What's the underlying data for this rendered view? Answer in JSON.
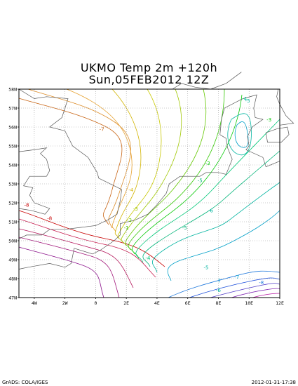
{
  "title": {
    "line1": "UKMO Temp 2m  +120h",
    "line2": "Sun,05FEB2012 12Z"
  },
  "footer": {
    "left": "GrADS: COLA/IGES",
    "right": "2012-01-31-17:38"
  },
  "map": {
    "lat_range": [
      47,
      58
    ],
    "lon_range": [
      -5,
      12
    ],
    "lat_labels": [
      "47N",
      "48N",
      "49N",
      "50N",
      "51N",
      "52N",
      "53N",
      "54N",
      "55N",
      "56N",
      "57N",
      "58N"
    ],
    "lon_ticks": [
      -4,
      -2,
      0,
      2,
      4,
      6,
      8,
      10,
      12
    ],
    "lon_labels": [
      "4W",
      "2W",
      "0",
      "2E",
      "4E",
      "6E",
      "8E",
      "10E",
      "12E"
    ],
    "grid": true
  },
  "contour_labels": [
    {
      "text": "-7",
      "lon": 0.4,
      "lat": 55.8,
      "color": "#c86414"
    },
    {
      "text": "-8",
      "lon": -4.5,
      "lat": 51.8,
      "color": "#c80000"
    },
    {
      "text": "-4",
      "lon": 2.3,
      "lat": 52.6,
      "color": "#d2b400"
    },
    {
      "text": "-3",
      "lon": 2.6,
      "lat": 51.6,
      "color": "#a0c800"
    },
    {
      "text": "-2",
      "lon": 2.2,
      "lat": 51.0,
      "color": "#64c800"
    },
    {
      "text": "-1",
      "lon": 2.0,
      "lat": 50.6,
      "color": "#32c800"
    },
    {
      "text": "-5",
      "lon": 6.8,
      "lat": 53.1,
      "color": "#00b478"
    },
    {
      "text": "-3",
      "lon": 7.3,
      "lat": 54.0,
      "color": "#00c800"
    },
    {
      "text": "-4",
      "lon": 9.7,
      "lat": 57.4,
      "color": "#00c896"
    },
    {
      "text": "-5",
      "lon": 9.9,
      "lat": 57.3,
      "color": "#00b4a0"
    },
    {
      "text": "-3",
      "lon": 11.3,
      "lat": 56.3,
      "color": "#00c800"
    },
    {
      "text": "-6",
      "lon": 7.5,
      "lat": 51.5,
      "color": "#00b4a0"
    },
    {
      "text": "-5",
      "lon": 5.8,
      "lat": 50.6,
      "color": "#00b478"
    },
    {
      "text": "-4",
      "lon": 3.4,
      "lat": 49.0,
      "color": "#00c878"
    },
    {
      "text": "-5",
      "lon": 7.2,
      "lat": 48.5,
      "color": "#00b4a0"
    },
    {
      "text": "-7",
      "lon": 8.0,
      "lat": 47.8,
      "color": "#00a0c8"
    },
    {
      "text": "-7",
      "lon": 9.2,
      "lat": 48.0,
      "color": "#00a0c8"
    },
    {
      "text": "-6",
      "lon": 8.0,
      "lat": 47.3,
      "color": "#00b4a0"
    },
    {
      "text": "-8",
      "lon": 10.8,
      "lat": 47.7,
      "color": "#1e78dc"
    },
    {
      "text": "-8",
      "lon": -3.0,
      "lat": 51.1,
      "color": "#c80000"
    }
  ]
}
